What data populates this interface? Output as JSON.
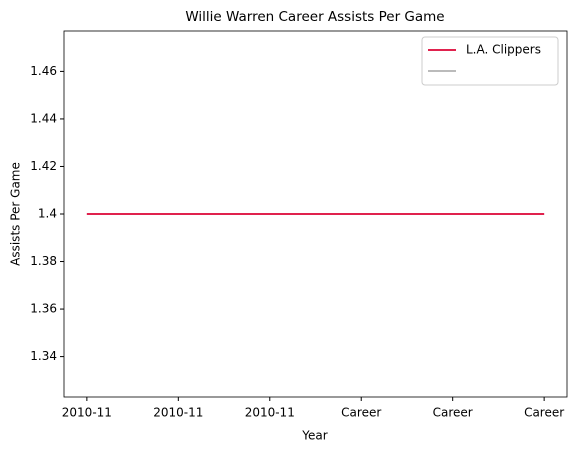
{
  "chart_data": {
    "type": "line",
    "title": "Willie Warren Career Assists Per Game",
    "xlabel": "Year",
    "ylabel": "Assists Per Game",
    "x": [
      0,
      1
    ],
    "series": [
      {
        "color": "#bbbbbb",
        "values": [
          1.4,
          1.4
        ]
      },
      {
        "name": "L.A. Clippers",
        "color": "#e0224e",
        "values": [
          1.4,
          1.4
        ]
      }
    ],
    "xlim": [
      -0.05,
      1.05
    ],
    "xticks": [
      {
        "value": 0,
        "label": "2010-11"
      },
      {
        "value": 0.2,
        "label": "2010-11"
      },
      {
        "value": 0.4,
        "label": "2010-11"
      },
      {
        "value": 0.6,
        "label": "Career"
      },
      {
        "value": 0.8,
        "label": "Career"
      },
      {
        "value": 1,
        "label": "Career"
      }
    ],
    "ylim": [
      1.323,
      1.477
    ],
    "yticks": [
      1.34,
      1.36,
      1.38,
      1.4,
      1.42,
      1.44,
      1.46
    ],
    "legend": "upper right",
    "grid": false
  }
}
